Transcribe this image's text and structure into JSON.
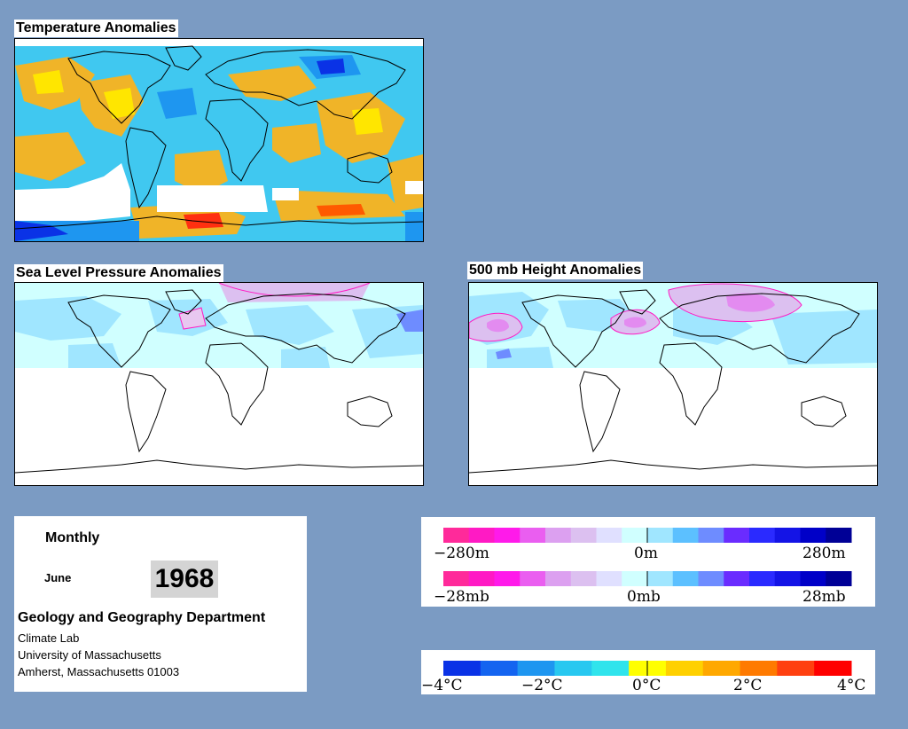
{
  "maps": {
    "temperature": {
      "title": "Temperature Anomalies"
    },
    "slp": {
      "title": "Sea Level Pressure Anomalies"
    },
    "height500": {
      "title": "500 mb Height Anomalies"
    }
  },
  "info": {
    "period": "Monthly",
    "month": "June",
    "year": "1968",
    "department": "Geology and Geography Department",
    "lab": "Climate Lab",
    "university": "University of Massachusetts",
    "address": "Amherst, Massachusetts 01003"
  },
  "scales": {
    "height": {
      "min_label": "−280m",
      "mid_label": "0m",
      "max_label": "280m",
      "colors": [
        "#ff2a9a",
        "#ff1ac4",
        "#ff1aea",
        "#ea5ef0",
        "#dca0f0",
        "#dcc0f0",
        "#e0e0ff",
        "#d0ffff",
        "#a0e6ff",
        "#5cc0ff",
        "#6e8cff",
        "#6a2cff",
        "#2a2aff",
        "#1414e6",
        "#0000c8",
        "#000096"
      ]
    },
    "pressure": {
      "min_label": "−28mb",
      "mid_label": "0mb",
      "max_label": "28mb",
      "colors": [
        "#ff2a9a",
        "#ff1ac4",
        "#ff1aea",
        "#ea5ef0",
        "#dca0f0",
        "#dcc0f0",
        "#e0e0ff",
        "#d0ffff",
        "#a0e6ff",
        "#5cc0ff",
        "#6e8cff",
        "#6a2cff",
        "#2a2aff",
        "#1414e6",
        "#0000c8",
        "#000096"
      ]
    },
    "temperature": {
      "labels": [
        "−4°C",
        "−2°C",
        "0°C",
        "2°C",
        "4°C"
      ],
      "colors": [
        "#0a32e6",
        "#1464f0",
        "#1e96f0",
        "#28c8f0",
        "#30e4ec",
        "#ffff00",
        "#ffd000",
        "#ffa800",
        "#ff7a00",
        "#ff4010",
        "#ff0000"
      ]
    }
  }
}
